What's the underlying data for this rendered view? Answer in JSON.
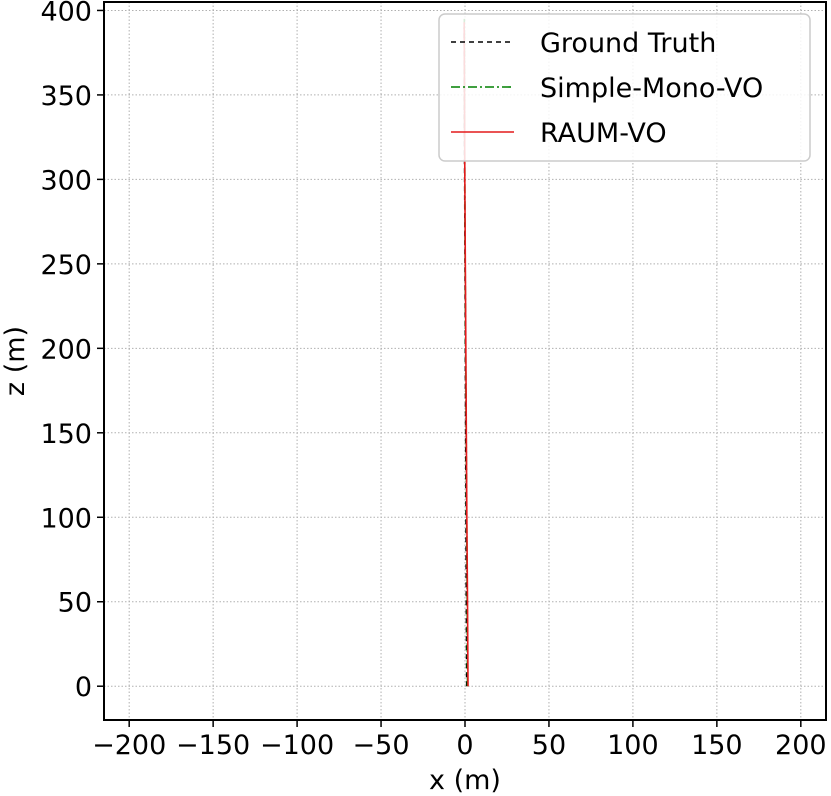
{
  "chart_data": {
    "type": "line",
    "xlabel": "x (m)",
    "ylabel": "z (m)",
    "xlim": [
      -215,
      215
    ],
    "ylim": [
      -20,
      405
    ],
    "xticks": [
      -200,
      -150,
      -100,
      -50,
      0,
      50,
      100,
      150,
      200
    ],
    "xtick_labels": [
      "−200",
      "−150",
      "−100",
      "−50",
      "0",
      "50",
      "100",
      "150",
      "200"
    ],
    "yticks": [
      0,
      50,
      100,
      150,
      200,
      250,
      300,
      350,
      400
    ],
    "ytick_labels": [
      "0",
      "50",
      "100",
      "150",
      "200",
      "250",
      "300",
      "350",
      "400"
    ],
    "grid": true,
    "legend_position": "top-right",
    "series": [
      {
        "name": "Ground Truth",
        "color": "#000000",
        "dash": "dashed",
        "x": [
          1.0,
          0.8,
          0.6,
          0.4,
          0.2,
          0.0,
          -0.2,
          -0.4,
          -0.5
        ],
        "y": [
          0,
          50,
          100,
          150,
          200,
          250,
          300,
          350,
          390
        ]
      },
      {
        "name": "Simple-Mono-VO",
        "color": "#008000",
        "dash": "dashdot",
        "x": [
          1.5,
          1.3,
          1.0,
          0.7,
          0.4,
          0.1,
          -0.1,
          -0.3,
          -0.4
        ],
        "y": [
          0,
          50,
          100,
          150,
          200,
          250,
          300,
          350,
          395
        ]
      },
      {
        "name": "RAUM-VO",
        "color": "#e41a1c",
        "dash": "solid",
        "x": [
          1.8,
          1.5,
          1.1,
          0.8,
          0.5,
          0.2,
          -0.1,
          -0.3,
          -0.5
        ],
        "y": [
          0,
          50,
          100,
          150,
          200,
          250,
          300,
          350,
          393
        ]
      }
    ]
  }
}
